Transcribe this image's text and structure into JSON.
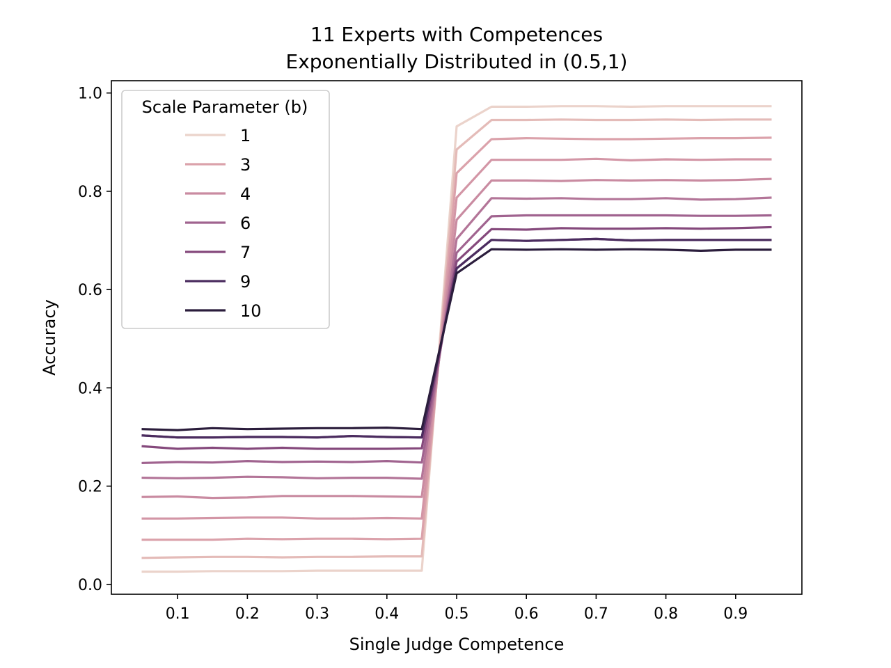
{
  "chart_data": {
    "type": "line",
    "title": [
      "11 Experts with Competences",
      "Exponentially Distributed in (0.5,1)"
    ],
    "xlabel": "Single Judge Competence",
    "ylabel": "Accuracy",
    "xlim": [
      0.005,
      0.995
    ],
    "ylim": [
      -0.02,
      1.025
    ],
    "xticks": [
      0.1,
      0.2,
      0.3,
      0.4,
      0.5,
      0.6,
      0.7,
      0.8,
      0.9
    ],
    "xtick_labels": [
      "0.1",
      "0.2",
      "0.3",
      "0.4",
      "0.5",
      "0.6",
      "0.7",
      "0.8",
      "0.9"
    ],
    "yticks": [
      0.0,
      0.2,
      0.4,
      0.6,
      0.8,
      1.0
    ],
    "ytick_labels": [
      "0.0",
      "0.2",
      "0.4",
      "0.6",
      "0.8",
      "1.0"
    ],
    "grid": false,
    "legend": {
      "title": "Scale Parameter (b)",
      "placement": "upper-left",
      "entries": [
        "1",
        "3",
        "4",
        "6",
        "7",
        "9",
        "10"
      ],
      "colors": [
        "#ebd3cb",
        "#dba2ab",
        "#c98ba1",
        "#a0638f",
        "#85497c",
        "#4b2c5f",
        "#2b1d3c"
      ]
    },
    "x": [
      0.05,
      0.1,
      0.15,
      0.2,
      0.25,
      0.3,
      0.35,
      0.4,
      0.45,
      0.5,
      0.55,
      0.6,
      0.65,
      0.7,
      0.75,
      0.8,
      0.85,
      0.9,
      0.95
    ],
    "series": [
      {
        "color": "#ebd3cb",
        "values": [
          0.026,
          0.026,
          0.027,
          0.027,
          0.027,
          0.028,
          0.028,
          0.028,
          0.028,
          0.932,
          0.972,
          0.972,
          0.973,
          0.973,
          0.972,
          0.973,
          0.973,
          0.973,
          0.973
        ]
      },
      {
        "color": "#e4bbb8",
        "values": [
          0.054,
          0.055,
          0.056,
          0.056,
          0.055,
          0.056,
          0.056,
          0.057,
          0.057,
          0.885,
          0.945,
          0.945,
          0.946,
          0.945,
          0.945,
          0.946,
          0.945,
          0.946,
          0.946
        ]
      },
      {
        "color": "#dba2ab",
        "values": [
          0.091,
          0.091,
          0.091,
          0.093,
          0.092,
          0.093,
          0.093,
          0.092,
          0.093,
          0.837,
          0.906,
          0.908,
          0.907,
          0.906,
          0.906,
          0.907,
          0.908,
          0.908,
          0.909
        ]
      },
      {
        "color": "#d396a6",
        "values": [
          0.134,
          0.134,
          0.135,
          0.136,
          0.136,
          0.134,
          0.134,
          0.135,
          0.134,
          0.787,
          0.864,
          0.864,
          0.864,
          0.866,
          0.863,
          0.865,
          0.864,
          0.865,
          0.865
        ]
      },
      {
        "color": "#c98ba1",
        "values": [
          0.178,
          0.179,
          0.176,
          0.177,
          0.18,
          0.18,
          0.18,
          0.179,
          0.178,
          0.742,
          0.822,
          0.822,
          0.821,
          0.823,
          0.822,
          0.823,
          0.822,
          0.823,
          0.825
        ]
      },
      {
        "color": "#b37598",
        "values": [
          0.217,
          0.216,
          0.217,
          0.219,
          0.218,
          0.216,
          0.217,
          0.217,
          0.215,
          0.703,
          0.786,
          0.785,
          0.786,
          0.784,
          0.784,
          0.786,
          0.783,
          0.784,
          0.787
        ]
      },
      {
        "color": "#a0638f",
        "values": [
          0.247,
          0.249,
          0.248,
          0.251,
          0.249,
          0.25,
          0.249,
          0.251,
          0.248,
          0.675,
          0.749,
          0.751,
          0.751,
          0.751,
          0.751,
          0.751,
          0.75,
          0.75,
          0.751
        ]
      },
      {
        "color": "#85497c",
        "values": [
          0.281,
          0.276,
          0.278,
          0.276,
          0.278,
          0.276,
          0.276,
          0.276,
          0.277,
          0.657,
          0.723,
          0.722,
          0.725,
          0.724,
          0.724,
          0.725,
          0.724,
          0.725,
          0.727
        ]
      },
      {
        "color": "#663a6f",
        "values": [
          0.303,
          0.299,
          0.299,
          0.3,
          0.3,
          0.299,
          0.302,
          0.3,
          0.299,
          0.643,
          0.701,
          0.699,
          0.701,
          0.703,
          0.7,
          0.701,
          0.701,
          0.701,
          0.701
        ]
      },
      {
        "color": "#4b2c5f",
        "values": [
          0.303,
          0.299,
          0.299,
          0.3,
          0.3,
          0.299,
          0.302,
          0.3,
          0.299,
          0.643,
          0.701,
          0.699,
          0.701,
          0.703,
          0.7,
          0.701,
          0.701,
          0.701,
          0.701
        ]
      },
      {
        "color": "#2b1d3c",
        "values": [
          0.316,
          0.314,
          0.318,
          0.316,
          0.317,
          0.318,
          0.318,
          0.319,
          0.316,
          0.633,
          0.682,
          0.681,
          0.682,
          0.681,
          0.682,
          0.681,
          0.679,
          0.681,
          0.681
        ]
      }
    ]
  }
}
